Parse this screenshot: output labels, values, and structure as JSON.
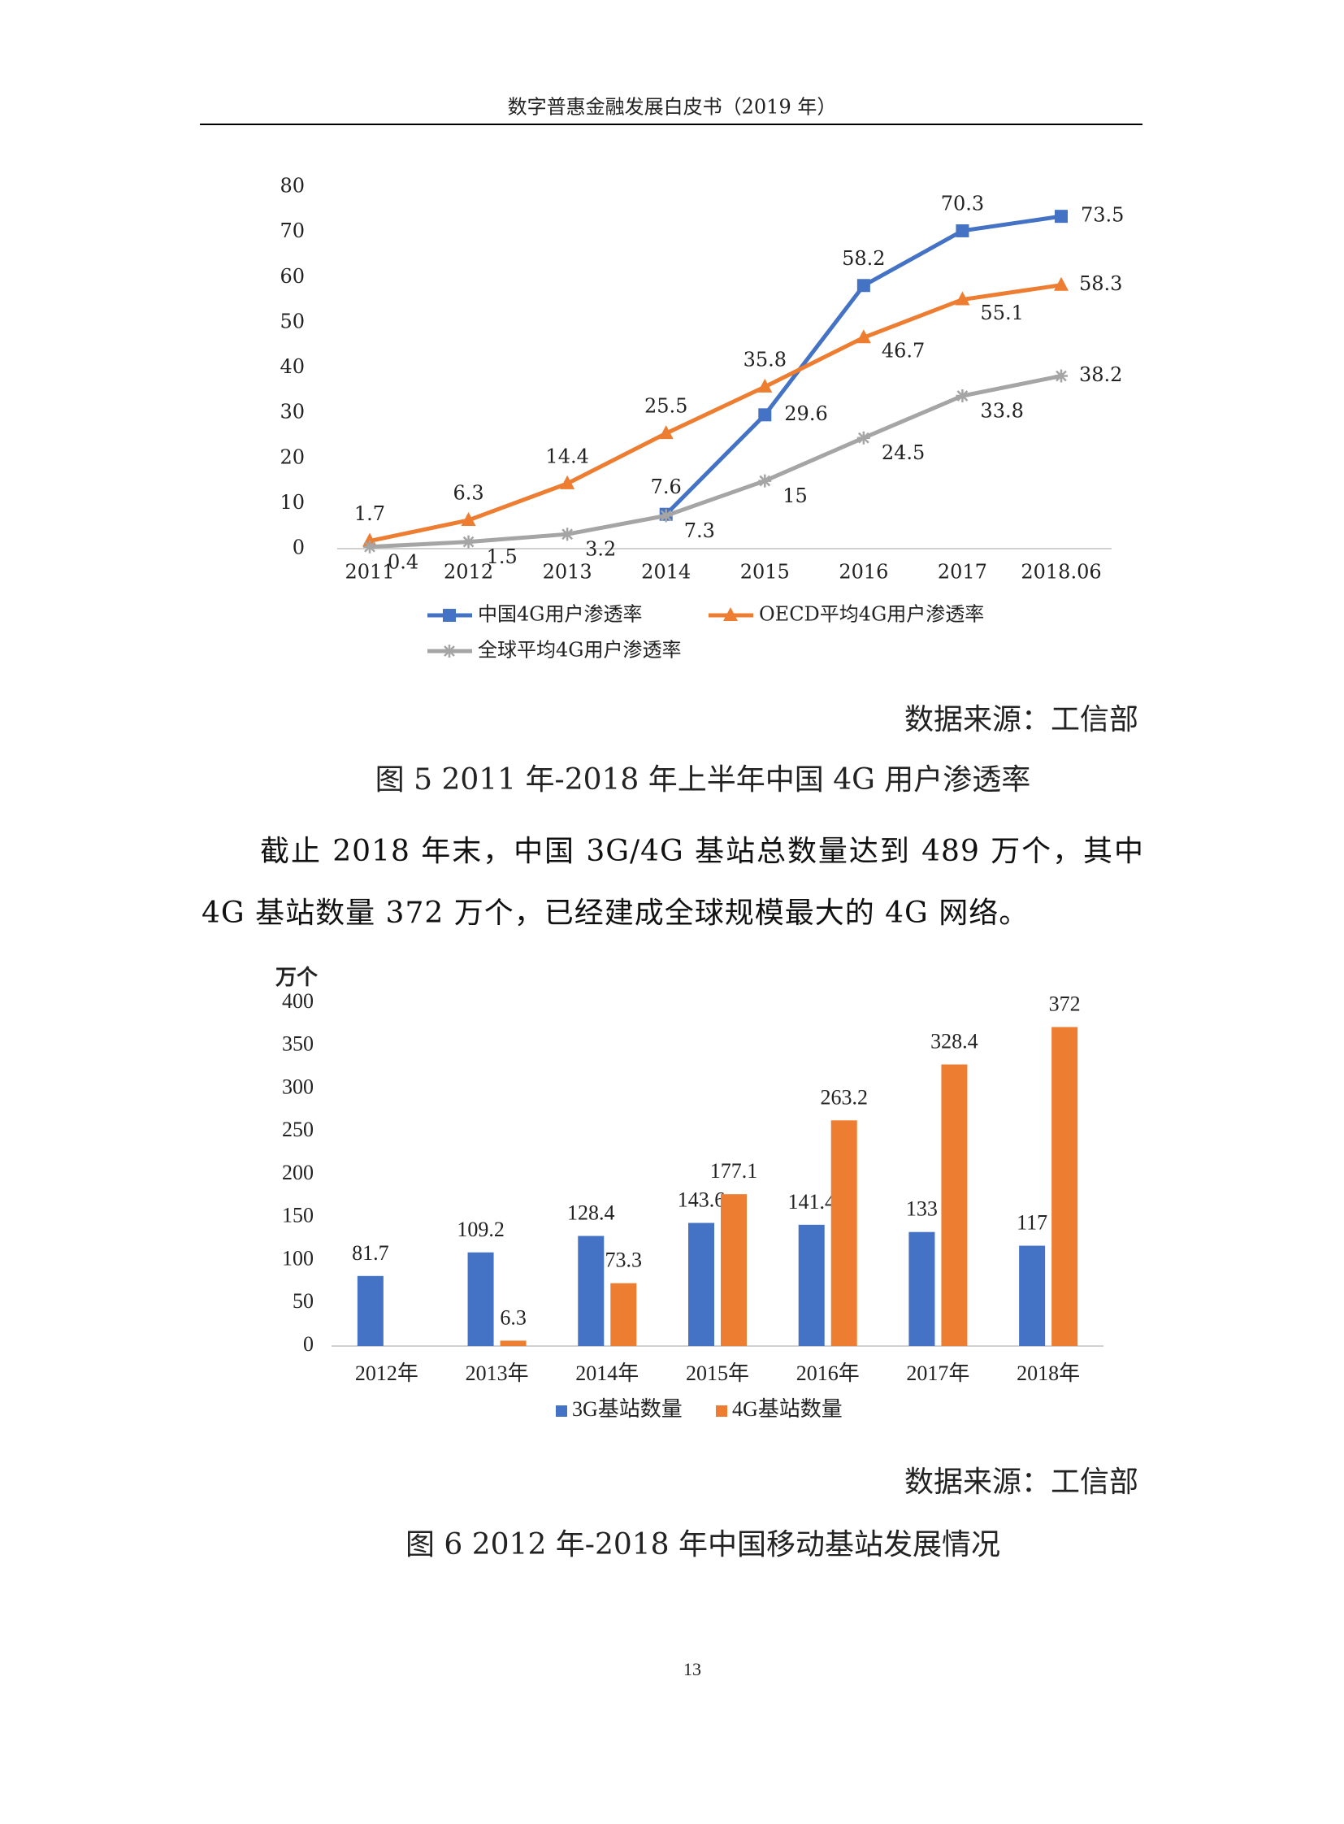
{
  "header": {
    "title": "数字普惠金融发展白皮书（2019 年）"
  },
  "chart_data": [
    {
      "type": "line",
      "categories": [
        "2011",
        "2012",
        "2013",
        "2014",
        "2015",
        "2016",
        "2017",
        "2018.06"
      ],
      "series": [
        {
          "name": "中国4G用户渗透率",
          "color": "#4472c4",
          "marker": "square",
          "values": [
            null,
            null,
            null,
            7.6,
            29.6,
            58.2,
            70.3,
            73.5
          ]
        },
        {
          "name": "OECD平均4G用户渗透率",
          "color": "#ed7d31",
          "marker": "triangle",
          "values": [
            1.7,
            6.3,
            14.4,
            25.5,
            35.8,
            46.7,
            55.1,
            58.3
          ]
        },
        {
          "name": "全球平均4G用户渗透率",
          "color": "#a5a5a5",
          "marker": "star",
          "values": [
            0.4,
            1.5,
            3.2,
            7.3,
            15,
            24.5,
            33.8,
            38.2
          ]
        }
      ],
      "ylim": [
        0,
        80
      ],
      "yticks": [
        0,
        10,
        20,
        30,
        40,
        50,
        60,
        70,
        80
      ],
      "grid": false,
      "legend": "bottom"
    },
    {
      "type": "bar",
      "y_label": "万个",
      "categories": [
        "2012年",
        "2013年",
        "2014年",
        "2015年",
        "2016年",
        "2017年",
        "2018年"
      ],
      "series": [
        {
          "name": "3G基站数量",
          "color": "#4472c4",
          "values": [
            81.7,
            109.2,
            128.4,
            143.6,
            141.4,
            133,
            117
          ]
        },
        {
          "name": "4G基站数量",
          "color": "#ed7d31",
          "values": [
            null,
            6.3,
            73.3,
            177.1,
            263.2,
            328.4,
            372
          ]
        }
      ],
      "ylim": [
        0,
        400
      ],
      "yticks": [
        0,
        50,
        100,
        150,
        200,
        250,
        300,
        350,
        400
      ],
      "grid": false,
      "legend": "bottom"
    }
  ],
  "figures": [
    {
      "source": "数据来源：工信部",
      "caption": "图 5 2011 年-2018 年上半年中国 4G 用户渗透率"
    },
    {
      "source": "数据来源：工信部",
      "caption": "图 6 2012 年-2018 年中国移动基站发展情况"
    }
  ],
  "paragraph": "截止 2018 年末，中国 3G/4G 基站总数量达到 489 万个，其中 4G 基站数量 372 万个，已经建成全球规模最大的 4G 网络。",
  "page_number": "13"
}
